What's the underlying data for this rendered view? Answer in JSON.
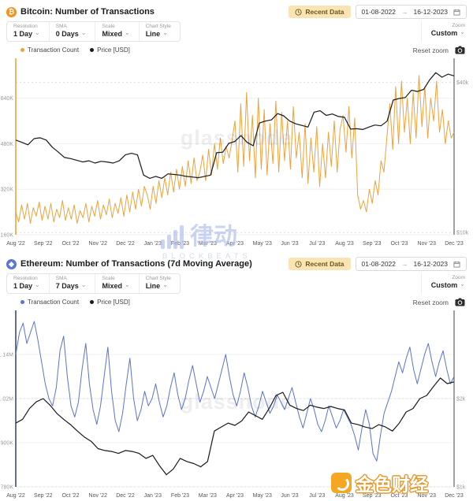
{
  "panels": [
    {
      "coin_symbol": "₿",
      "coin_color": "#f7931a",
      "title": "Bitcoin: Number of Transactions",
      "badge_label": "Recent Data",
      "date_from": "01-08-2022",
      "date_sep": "→",
      "date_to": "16-12-2023",
      "controls": [
        {
          "label": "Resolution",
          "value": "1 Day"
        },
        {
          "label": "SMA",
          "value": "0 Days"
        },
        {
          "label": "Scale",
          "value": "Mixed"
        },
        {
          "label": "Chart Style",
          "value": "Line"
        }
      ],
      "zoom_label": "Zoom",
      "zoom_value": "Custom",
      "legend": [
        {
          "label": "Transaction Count",
          "color": "#eda23b"
        },
        {
          "label": "Price [USD]",
          "color": "#1a1a1a"
        }
      ],
      "reset_label": "Reset zoom",
      "watermark": "glassnode"
    },
    {
      "coin_symbol": "◆",
      "coin_color": "#5c74d8",
      "title": "Ethereum: Number of Transactions (7d Moving Average)",
      "badge_label": "Recent Data",
      "date_from": "01-08-2022",
      "date_sep": "→",
      "date_to": "16-12-2023",
      "controls": [
        {
          "label": "Resolution",
          "value": "1 Day"
        },
        {
          "label": "SMA",
          "value": "7 Days"
        },
        {
          "label": "Scale",
          "value": "Mixed"
        },
        {
          "label": "Chart Style",
          "value": "Line"
        }
      ],
      "zoom_label": "Zoom",
      "zoom_value": "Custom",
      "legend": [
        {
          "label": "Transaction Count",
          "color": "#5b72d0"
        },
        {
          "label": "Price [USD]",
          "color": "#1a1a1a"
        }
      ],
      "reset_label": "Reset zoom",
      "watermark": "glassnode"
    }
  ],
  "watermarks": {
    "blockbeats_cn": "律动",
    "blockbeats_en": "BLOCKBEATS",
    "jinse": "金色财经"
  },
  "chart_data": [
    {
      "type": "line",
      "title": "Bitcoin: Number of Transactions",
      "x_labels": [
        "Aug '22",
        "Sep '22",
        "Oct '22",
        "Nov '22",
        "Dec '22",
        "Jan '23",
        "Feb '23",
        "Mar '23",
        "Apr '23",
        "May '23",
        "Jun '23",
        "Jul '23",
        "Aug '23",
        "Sep '23",
        "Oct '23",
        "Nov '23",
        "Dec '23"
      ],
      "left_axis": {
        "label": "Transaction Count",
        "scale": "linear",
        "min": 160,
        "max": 780,
        "unit": "thousand transactions",
        "color": "#eda23b",
        "ticks": [
          {
            "value": 640,
            "label": "640K"
          },
          {
            "value": 480,
            "label": "480K"
          },
          {
            "value": 320,
            "label": "320K"
          },
          {
            "value": 160,
            "label": "160K"
          }
        ]
      },
      "right_axis": {
        "label": "Price [USD]",
        "scale": "log",
        "min": 9800,
        "max": 50000,
        "color": "#444444",
        "ticks": [
          {
            "value": 40000,
            "label": "$40k"
          },
          {
            "value": 10000,
            "label": "$10k"
          }
        ]
      },
      "series": [
        {
          "name": "Transaction Count",
          "axis": "left",
          "color": "#eda23b",
          "width": 1,
          "values": [
            240,
            205,
            265,
            215,
            270,
            200,
            255,
            225,
            275,
            210,
            260,
            215,
            270,
            205,
            250,
            220,
            280,
            210,
            255,
            215,
            265,
            200,
            245,
            220,
            270,
            205,
            260,
            225,
            280,
            215,
            265,
            230,
            285,
            220,
            270,
            235,
            290,
            225,
            300,
            240,
            310,
            250,
            320,
            260,
            330,
            300,
            250,
            330,
            270,
            350,
            290,
            360,
            300,
            380,
            310,
            390,
            320,
            400,
            330,
            420,
            340,
            430,
            350,
            380,
            440,
            350,
            460,
            370,
            480,
            390,
            500,
            410,
            470,
            430,
            490,
            560,
            380,
            620,
            400,
            660,
            420,
            580,
            360,
            640,
            390,
            600,
            370,
            550,
            410,
            630,
            380,
            590,
            420,
            560,
            390,
            610,
            430,
            520,
            360,
            550,
            340,
            500,
            380,
            540,
            330,
            480,
            360,
            520,
            400,
            560,
            380,
            530,
            580,
            450,
            610,
            430,
            570,
            300,
            250,
            280,
            240,
            320,
            270,
            350,
            300,
            420,
            380,
            500,
            620,
            460,
            680,
            480,
            700,
            520,
            640,
            480,
            660,
            500,
            720,
            540,
            680,
            500,
            640,
            560,
            700,
            520,
            600,
            480,
            560,
            500,
            520
          ]
        },
        {
          "name": "Price [USD]",
          "axis": "right",
          "color": "#1a1a1a",
          "width": 1.2,
          "values": [
            23500,
            23000,
            22500,
            23800,
            24000,
            23500,
            22000,
            21000,
            20000,
            19800,
            19500,
            19200,
            19400,
            19000,
            19300,
            19200,
            19000,
            19400,
            20500,
            20800,
            20500,
            17000,
            16500,
            16800,
            16500,
            17200,
            17100,
            17000,
            16800,
            16700,
            16600,
            16800,
            17000,
            20900,
            21000,
            22800,
            23200,
            24500,
            23000,
            22300,
            27500,
            28000,
            28300,
            30000,
            29400,
            28000,
            27300,
            26900,
            26500,
            30400,
            30800,
            29500,
            29900,
            29200,
            29000,
            26000,
            26100,
            25900,
            26500,
            27000,
            26800,
            28000,
            34000,
            34500,
            34800,
            37200,
            36800,
            37500,
            41000,
            43800,
            42000,
            43200,
            42500
          ]
        }
      ]
    },
    {
      "type": "line",
      "title": "Ethereum: Number of Transactions (7d Moving Average)",
      "x_labels": [
        "Aug '22",
        "Sep '22",
        "Oct '22",
        "Nov '22",
        "Dec '22",
        "Jan '23",
        "Feb '23",
        "Mar '23",
        "Apr '23",
        "May '23",
        "Jun '23",
        "Jul '23",
        "Aug '23",
        "Sep '23",
        "Oct '23",
        "Nov '23",
        "Dec '23"
      ],
      "left_axis": {
        "label": "Transaction Count",
        "scale": "linear",
        "min": 780,
        "max": 1260,
        "unit": "thousand transactions",
        "color": "#3f4a77",
        "ticks": [
          {
            "value": 1140,
            "label": "1.14M"
          },
          {
            "value": 1020,
            "label": "1.02M"
          },
          {
            "value": 900,
            "label": "900K"
          },
          {
            "value": 780,
            "label": "780K"
          }
        ]
      },
      "right_axis": {
        "label": "Price [USD]",
        "scale": "log",
        "min": 1000,
        "max": 4000,
        "color": "#444444",
        "ticks": [
          {
            "value": 2000,
            "label": "$2k"
          },
          {
            "value": 1000,
            "label": "$1k"
          }
        ]
      },
      "series": [
        {
          "name": "Transaction Count",
          "axis": "left",
          "color": "#5b72d0",
          "width": 1,
          "values": [
            1140,
            1200,
            1225,
            1170,
            1200,
            1230,
            1180,
            1120,
            1060,
            1020,
            1000,
            1050,
            1150,
            1190,
            1080,
            1000,
            970,
            1010,
            1100,
            1170,
            1060,
            990,
            950,
            1000,
            1080,
            1160,
            1040,
            960,
            930,
            980,
            1060,
            1130,
            1020,
            960,
            990,
            1040,
            1000,
            1020,
            1060,
            1010,
            970,
            1000,
            1050,
            1090,
            1030,
            990,
            1020,
            1070,
            1110,
            1060,
            1010,
            1040,
            1080,
            1050,
            1020,
            1060,
            1100,
            1140,
            1080,
            1030,
            1000,
            1040,
            1090,
            1050,
            1000,
            970,
            1000,
            1040,
            1010,
            980,
            1000,
            1030,
            1010,
            990,
            1020,
            1050,
            1010,
            970,
            940,
            980,
            1020,
            990,
            950,
            930,
            960,
            1000,
            970,
            940,
            960,
            990,
            970,
            950,
            920,
            880,
            940,
            990,
            950,
            870,
            850,
            920,
            980,
            1010,
            1040,
            1080,
            1120,
            1090,
            1130,
            1160,
            1100,
            1060,
            1100,
            1140,
            1170,
            1120,
            1080,
            1120,
            1150,
            1100,
            1060,
            1080
          ]
        },
        {
          "name": "Price [USD]",
          "axis": "right",
          "color": "#1a1a1a",
          "width": 1.2,
          "values": [
            1650,
            1700,
            1850,
            1950,
            2000,
            1900,
            1780,
            1700,
            1630,
            1550,
            1480,
            1430,
            1350,
            1330,
            1320,
            1300,
            1330,
            1320,
            1300,
            1250,
            1280,
            1180,
            1100,
            1150,
            1250,
            1220,
            1200,
            1170,
            1220,
            1550,
            1600,
            1650,
            1620,
            1680,
            1800,
            1750,
            1700,
            1850,
            2050,
            2100,
            1900,
            1850,
            1820,
            1900,
            1870,
            1850,
            1880,
            1850,
            1830,
            1650,
            1630,
            1600,
            1580,
            1630,
            1600,
            1550,
            1650,
            1800,
            1850,
            2000,
            2050,
            2200,
            2350,
            2250,
            2280
          ]
        }
      ]
    }
  ]
}
